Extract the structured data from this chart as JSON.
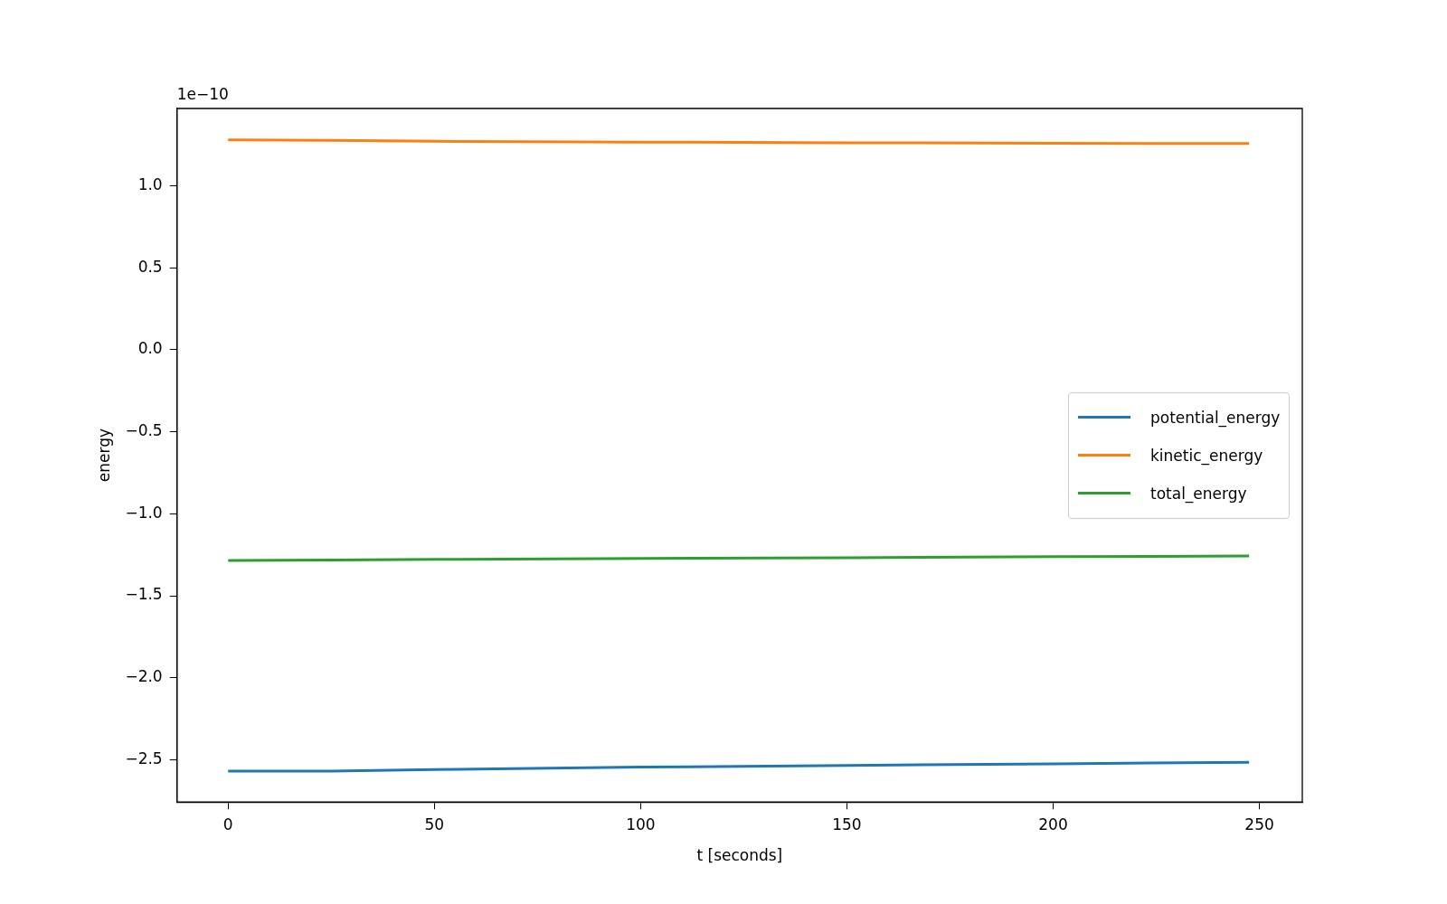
{
  "chart_data": {
    "type": "line",
    "xlabel": "t [seconds]",
    "ylabel": "energy",
    "annotations": [
      "1e−10"
    ],
    "xlim": [
      -12.4,
      260.4
    ],
    "xticks": [
      0,
      50,
      100,
      150,
      200,
      250
    ],
    "ylim": [
      -2.758,
      1.472
    ],
    "yticks": [
      {
        "value": -2.5,
        "label": "−2.5"
      },
      {
        "value": -2,
        "label": "−2.0"
      },
      {
        "value": -1.5,
        "label": "−1.5"
      },
      {
        "value": -1,
        "label": "−1.0"
      },
      {
        "value": -0.5,
        "label": "−0.5"
      },
      {
        "value": 0,
        "label": "0.0"
      },
      {
        "value": 0.5,
        "label": "0.5"
      },
      {
        "value": 1,
        "label": "1.0"
      }
    ],
    "x": [
      0,
      25,
      50,
      100,
      150,
      200,
      247.5
    ],
    "series": [
      {
        "name": "potential_energy",
        "color": "#1f77b4",
        "values": [
          -2.57,
          -2.57,
          -2.56,
          -2.545,
          -2.535,
          -2.525,
          -2.515
        ]
      },
      {
        "name": "kinetic_energy",
        "color": "#ff7f0e",
        "values": [
          1.28,
          1.277,
          1.272,
          1.267,
          1.263,
          1.26,
          1.258
        ]
      },
      {
        "name": "total_energy",
        "color": "#2ca02c",
        "values": [
          -1.285,
          -1.282,
          -1.278,
          -1.272,
          -1.268,
          -1.262,
          -1.257
        ]
      }
    ],
    "legend": "right",
    "grid": false,
    "marker": "none",
    "line_style": "solid"
  }
}
